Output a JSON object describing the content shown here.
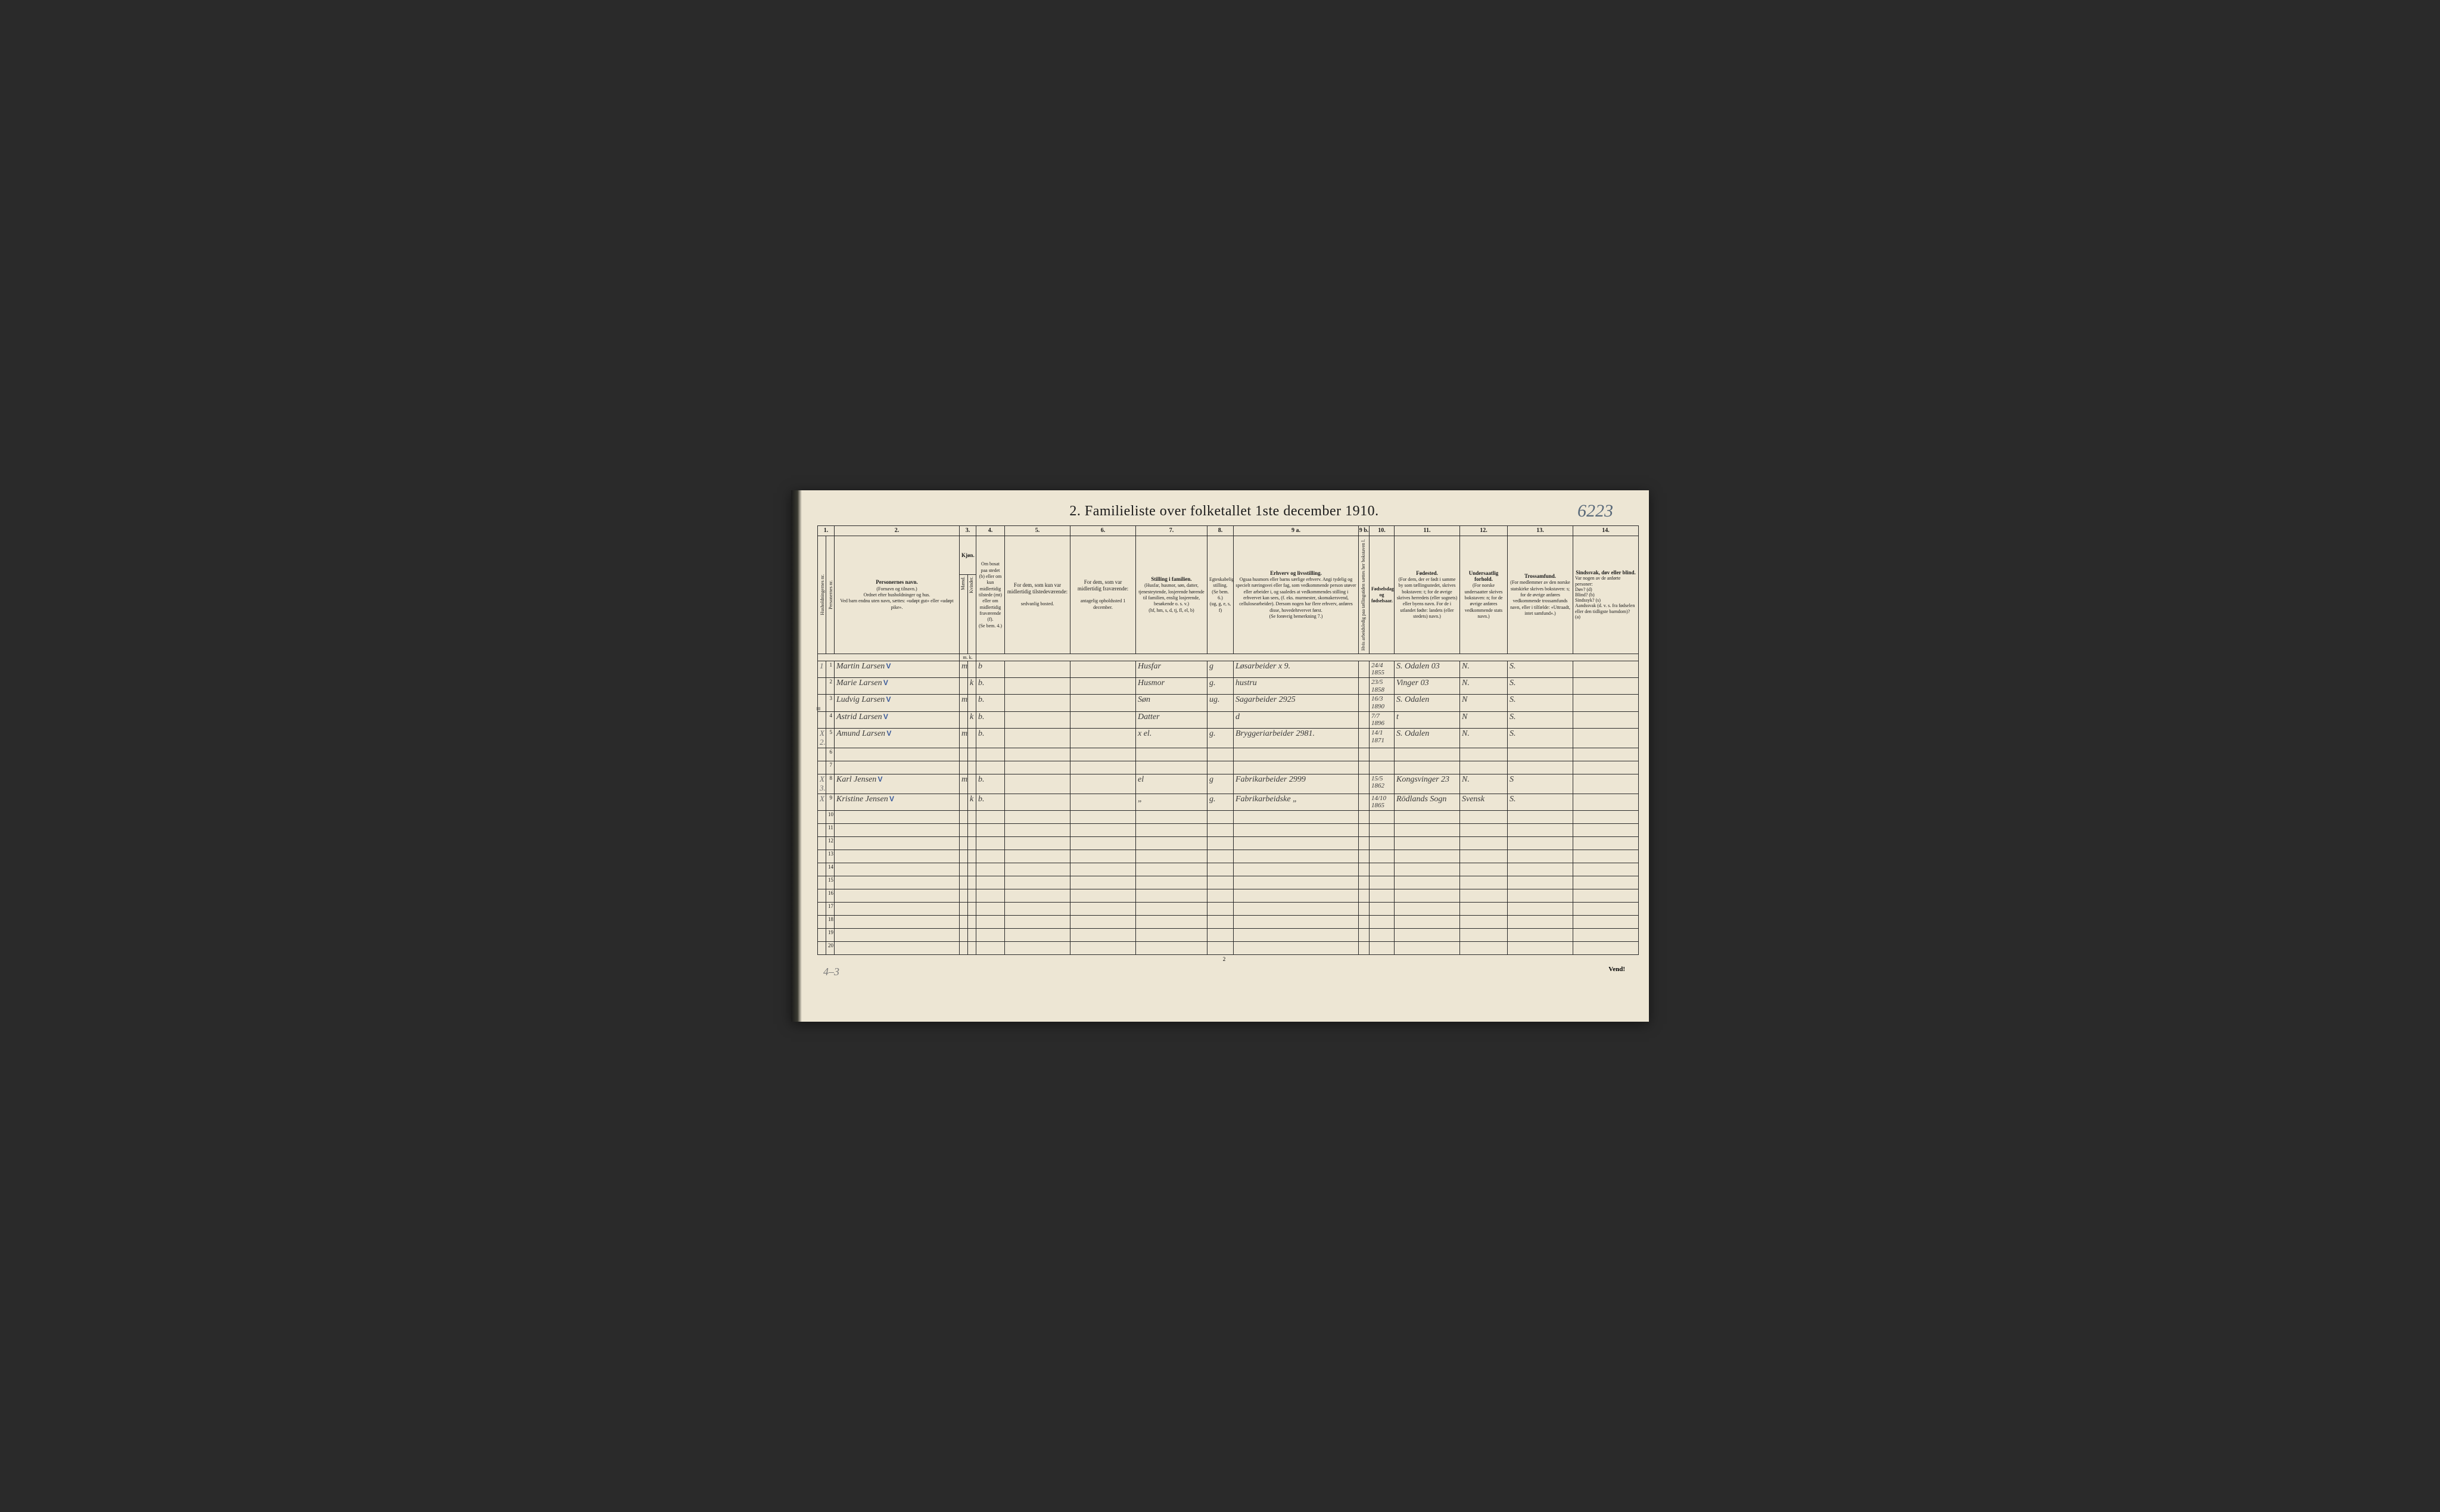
{
  "page_number_handwritten": "6223",
  "title": "2.  Familieliste over folketallet 1ste december 1910.",
  "footer_page_no": "2",
  "footer_right": "Vend!",
  "footer_bottom_handwritten": "4–3",
  "col_numbers": [
    "1.",
    "2.",
    "3.",
    "4.",
    "5.",
    "6.",
    "7.",
    "8.",
    "9 a.",
    "9 b.",
    "10.",
    "11.",
    "12.",
    "13.",
    "14."
  ],
  "col1": {
    "a": "Husholdningernes nr.",
    "b": "Personernes nr."
  },
  "col2": {
    "title": "Personernes navn.",
    "sub": "(Fornavn og tilnavn.)\nOrdnet efter husholdninger og hus.\nVed barn endnu uten navn, sættes: «udøpt gut» eller «udøpt pike»."
  },
  "col3": {
    "title": "Kjøn.",
    "m": "Mænd.",
    "k": "Kvinder.",
    "mk": "m.  k."
  },
  "col4": {
    "title": "Om bosat paa stedet (b) eller om kun midlertidig tilstede (mt) eller om midlertidig fraværende (f).",
    "sub": "(Se bem. 4.)"
  },
  "col5": {
    "title": "For dem, som kun var midlertidig tilstedeværende:",
    "sub": "sedvanlig bosted."
  },
  "col6": {
    "title": "For dem, som var midlertidig fraværende:",
    "sub": "antagelig opholdssted 1 december."
  },
  "col7": {
    "title": "Stilling i familien.",
    "sub": "(Husfar, husmor, søn, datter, tjenesteytende, losjerende hørende til familien, enslig losjerende, besøkende o. s. v.)",
    "abbr": "(hf, hm, s, d, tj, fl, el, b)"
  },
  "col8": {
    "title": "Egteskabelig stilling.",
    "sub": "(Se bem. 6.)",
    "abbr": "(ug, g, e, s, f)"
  },
  "col9a": {
    "title": "Erhverv og livsstilling.",
    "sub": "Ogsaa husmors eller barns særlige erhverv. Angi tydelig og specielt næringsvei eller fag, som vedkommende person utøver eller arbeider i, og saaledes at vedkommendes stilling i erhvervet kan sees, (f. eks. murmester, skomakersvend, cellulosearbeider). Dersom nogen har flere erhverv, anføres disse, hovedehrvervet først.",
    "note": "(Se forøvrig bemerkning 7.)"
  },
  "col9b": "Hvis arbeidsledig paa tællingstiden sættes her bokstaven l.",
  "col10": {
    "title": "Fødselsdag og fødselsaar."
  },
  "col11": {
    "title": "Fødested.",
    "sub": "(For dem, der er født i samme by som tællingsstedet, skrives bokstaven: t; for de øvrige skrives herredets (eller sognets) eller byens navn. For de i utlandet fødte: landets (eller stedets) navn.)"
  },
  "col12": {
    "title": "Undersaatlig forhold.",
    "sub": "(For norske undersaatter skrives bokstaven: n; for de øvrige anføres vedkommende stats navn.)"
  },
  "col13": {
    "title": "Trossamfund.",
    "sub": "(For medlemmer av den norske statskirke skrives bokstaven: s; for de øvrige anføres vedkommende trossamfunds navn, eller i tilfælde: «Uttraadt, intet samfund».)"
  },
  "col14": {
    "title": "Sindssvak, døv eller blind.",
    "sub": "Var nogen av de anførte personer:\nDøv?      (d)\nBlind?    (b)\nSindssyk? (s)\nAandssvak (d. v. s. fra fødselen eller den tidligste barndom)? (a)"
  },
  "rows": [
    {
      "n": "1",
      "margin": "1",
      "name": "Martin  Larsen",
      "tick": "V",
      "m": "m",
      "k": "",
      "b": "b",
      "c5": "",
      "c6": "",
      "c7": "Husfar",
      "c8": "g",
      "c9a": "Løsarbeider  x 9.",
      "c9b": "",
      "c10": "24/4 1855",
      "c11": "S. Odalen  03",
      "c12": "N.",
      "c13": "S.",
      "c14": ""
    },
    {
      "n": "2",
      "margin": "",
      "name": "Marie  Larsen",
      "tick": "V",
      "m": "",
      "k": "k",
      "b": "b.",
      "c5": "",
      "c6": "",
      "c7": "Husmor",
      "c8": "g.",
      "c9a": "hustru",
      "c9b": "",
      "c10": "23/5 1858",
      "c11": "Vinger 03",
      "c12": "N.",
      "c13": "S.",
      "c14": ""
    },
    {
      "n": "3",
      "margin": "",
      "name": "Ludvig  Larsen",
      "tick": "V",
      "m": "m",
      "k": "",
      "b": "b.",
      "c5": "",
      "c6": "",
      "c7": "Søn",
      "c8": "ug.",
      "c9a": "Sagarbeider 2925",
      "c9b": "",
      "c10": "16/3 1890",
      "c11": "S. Odalen",
      "c12": "N",
      "c13": "S.",
      "c14": ""
    },
    {
      "n": "4",
      "margin": "",
      "name": "Astrid  Larsen",
      "tick": "V",
      "m": "",
      "k": "k",
      "b": "b.",
      "c5": "",
      "c6": "",
      "c7": "Datter",
      "c8": "",
      "c9a": "d",
      "c9b": "",
      "c10": "7/7 1896",
      "c11": "t",
      "c12": "N",
      "c13": "S.",
      "c14": ""
    },
    {
      "n": "5",
      "margin": "X 2.",
      "name": "Amund  Larsen",
      "tick": "V",
      "m": "m",
      "k": "",
      "b": "b.",
      "c5": "",
      "c6": "",
      "c7": "x el.",
      "c8": "g.",
      "c9a": "Bryggeriarbeider 2981.",
      "c9b": "",
      "c10": "14/1 1871",
      "c11": "S. Odalen",
      "c12": "N.",
      "c13": "S.",
      "c14": ""
    },
    {
      "n": "6"
    },
    {
      "n": "7"
    },
    {
      "n": "8",
      "margin": "X 3.",
      "name": "Karl Jensen",
      "tick": "V",
      "m": "m",
      "k": "",
      "b": "b.",
      "c5": "",
      "c6": "",
      "c7": "el",
      "c8": "g",
      "c9a": "Fabrikarbeider 2999",
      "c9b": "",
      "c10": "15/5 1862",
      "c11": "Kongsvinger 23",
      "c12": "N.",
      "c13": "S",
      "c14": ""
    },
    {
      "n": "9",
      "margin": "X",
      "name": "Kristine Jensen",
      "tick": "V",
      "m": "",
      "k": "k",
      "b": "b.",
      "c5": "",
      "c6": "",
      "c7": "„",
      "c8": "g.",
      "c9a": "Fabrikarbeidske  „",
      "c9b": "",
      "c10": "14/10 1865",
      "c11": "Rödlands Sogn",
      "c12": "Svensk",
      "c13": "S.",
      "c14": ""
    },
    {
      "n": "10"
    },
    {
      "n": "11"
    },
    {
      "n": "12"
    },
    {
      "n": "13"
    },
    {
      "n": "14"
    },
    {
      "n": "15"
    },
    {
      "n": "16"
    },
    {
      "n": "17"
    },
    {
      "n": "18"
    },
    {
      "n": "19"
    },
    {
      "n": "20"
    }
  ],
  "colwidths": {
    "c1a": 14,
    "c1b": 14,
    "c2": 210,
    "c3m": 14,
    "c3k": 14,
    "c4": 48,
    "c5": 110,
    "c6": 110,
    "c7": 120,
    "c8": 44,
    "c9a": 210,
    "c9b": 18,
    "c10": 42,
    "c11": 110,
    "c12": 80,
    "c13": 110,
    "c14": 110
  },
  "colors": {
    "paper": "#ede6d4",
    "ink": "#1a1a1a",
    "hw_ink": "#3a3a3a",
    "hw_blue": "#3a5a9a",
    "hw_pencil": "#888888",
    "border": "#2a2a2a",
    "bg_outer": "#2a2a2a"
  }
}
